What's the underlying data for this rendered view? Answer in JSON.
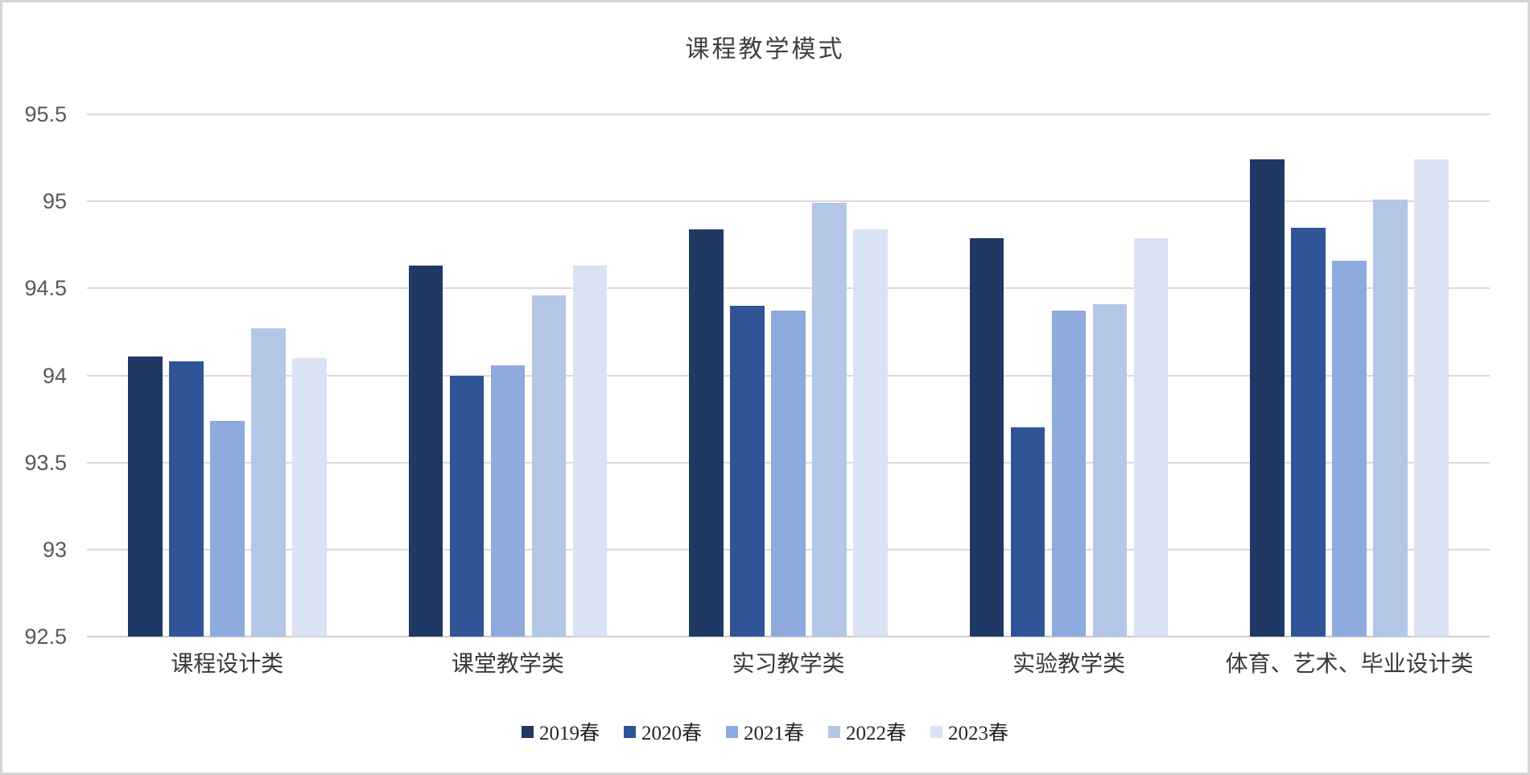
{
  "chart_data": {
    "type": "bar",
    "title": "课程教学模式",
    "categories": [
      "课程设计类",
      "课堂教学类",
      "实习教学类",
      "实验教学类",
      "体育、艺术、毕业设计类"
    ],
    "series": [
      {
        "name": "2019春",
        "color": "#1F3864",
        "values": [
          94.11,
          94.63,
          94.84,
          94.79,
          95.24
        ]
      },
      {
        "name": "2020春",
        "color": "#2F5597",
        "values": [
          94.08,
          94.0,
          94.4,
          93.7,
          94.85
        ]
      },
      {
        "name": "2021春",
        "color": "#8FAADC",
        "values": [
          93.74,
          94.06,
          94.37,
          94.37,
          94.66
        ]
      },
      {
        "name": "2022春",
        "color": "#B4C7E7",
        "values": [
          94.27,
          94.46,
          94.99,
          94.41,
          95.01
        ]
      },
      {
        "name": "2023春",
        "color": "#DAE3F3",
        "values": [
          94.1,
          94.63,
          94.84,
          94.79,
          95.24
        ]
      }
    ],
    "ylim": [
      92.5,
      95.5
    ],
    "yticks": [
      92.5,
      93,
      93.5,
      94,
      94.5,
      95,
      95.5
    ],
    "ytick_labels": [
      "92.5",
      "93",
      "93.5",
      "94",
      "94.5",
      "95",
      "95.5"
    ],
    "grid": true,
    "legend_position": "bottom",
    "xlabel": "",
    "ylabel": ""
  },
  "colors": {
    "background": "#ffffff",
    "frame_border": "#d6d6d6",
    "gridline": "#d9d9d9",
    "axis_line": "#cccccc",
    "tick_label": "#595959",
    "category_label": "#3a3a3a",
    "legend_label": "#262626",
    "title": "#404040"
  }
}
